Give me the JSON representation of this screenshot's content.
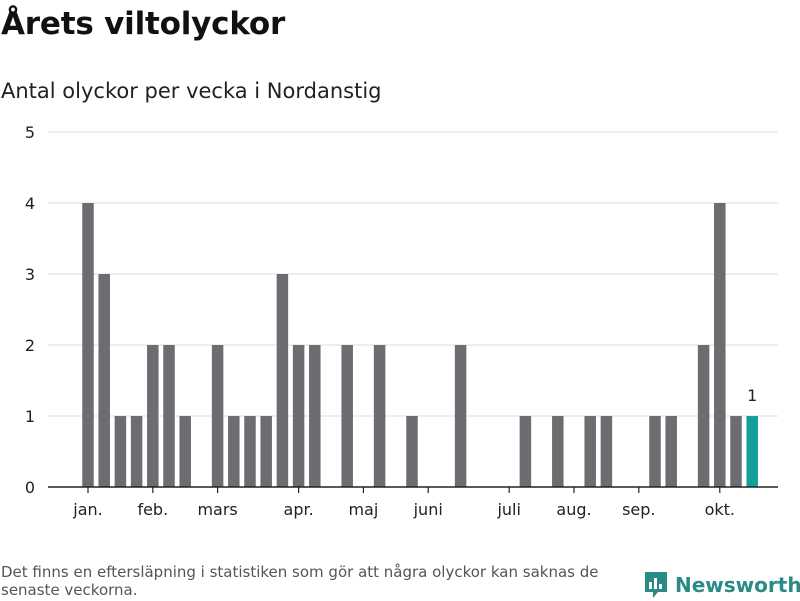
{
  "title": "Årets viltolyckor",
  "subtitle": "Antal olyckor per vecka i Nordanstig",
  "footnote": "Det finns en eftersläpning i statistiken som gör att några olyckor kan saknas de senaste veckorna.",
  "brand": {
    "name": "Newsworthy",
    "color": "#2a8a86"
  },
  "colors": {
    "bar": "#6d6c71",
    "highlight": "#13a09a",
    "grid": "#dddddd",
    "axis": "#222222"
  },
  "chart_data": {
    "type": "bar",
    "title": "Årets viltolyckor",
    "subtitle": "Antal olyckor per vecka i Nordanstig",
    "xlabel": "",
    "ylabel": "",
    "ylim": [
      0,
      5
    ],
    "yticks": [
      0,
      1,
      2,
      3,
      4,
      5
    ],
    "grid": true,
    "week_start": 1,
    "weeks": [
      1,
      2,
      3,
      4,
      5,
      6,
      7,
      8,
      9,
      10,
      11,
      12,
      13,
      14,
      15,
      16,
      17,
      18,
      19,
      20,
      21,
      22,
      23,
      24,
      25,
      26,
      27,
      28,
      29,
      30,
      31,
      32,
      33,
      34,
      35,
      36,
      37,
      38,
      39,
      40,
      41,
      42
    ],
    "values": [
      4,
      3,
      1,
      1,
      2,
      2,
      1,
      0,
      2,
      1,
      1,
      1,
      3,
      2,
      2,
      0,
      2,
      0,
      2,
      0,
      1,
      0,
      0,
      2,
      0,
      0,
      0,
      1,
      0,
      1,
      0,
      1,
      1,
      0,
      0,
      1,
      1,
      0,
      2,
      4,
      1,
      1
    ],
    "highlight_index": 41,
    "highlight_label": "1",
    "month_labels": [
      {
        "label": "jan.",
        "week": 1
      },
      {
        "label": "feb.",
        "week": 5
      },
      {
        "label": "mars",
        "week": 9
      },
      {
        "label": "apr.",
        "week": 14
      },
      {
        "label": "maj",
        "week": 18
      },
      {
        "label": "juni",
        "week": 22
      },
      {
        "label": "juli",
        "week": 27
      },
      {
        "label": "aug.",
        "week": 31
      },
      {
        "label": "sep.",
        "week": 35
      },
      {
        "label": "okt.",
        "week": 40
      }
    ]
  }
}
